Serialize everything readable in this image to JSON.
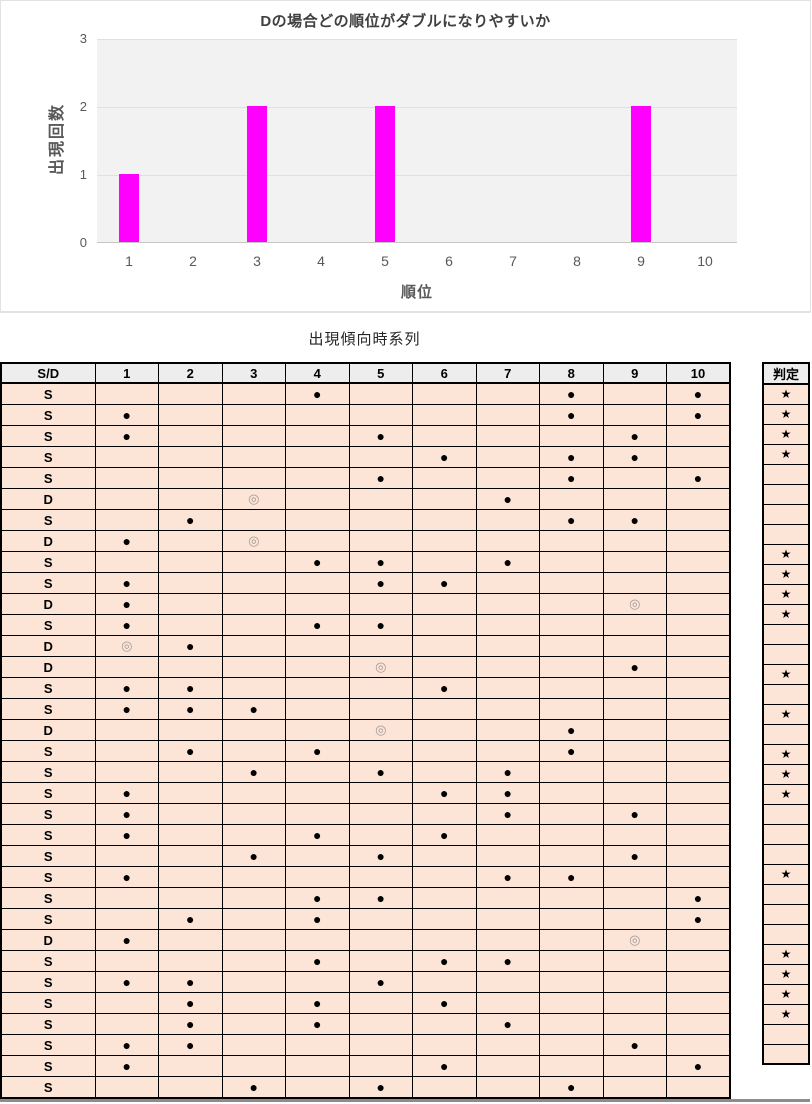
{
  "chart_data": {
    "type": "bar",
    "title": "Dの場合どの順位がダブルになりやすいか",
    "xlabel": "順位",
    "ylabel": "出現回数",
    "categories": [
      "1",
      "2",
      "3",
      "4",
      "5",
      "6",
      "7",
      "8",
      "9",
      "10"
    ],
    "values": [
      1,
      0,
      2,
      0,
      2,
      0,
      0,
      0,
      2,
      0
    ],
    "ylim": [
      0,
      3
    ],
    "yticks": [
      "0",
      "1",
      "2",
      "3"
    ],
    "bar_color": "#ff00ff",
    "plot_bg": "#f2f2f2",
    "grid": true,
    "legend": false
  },
  "table": {
    "title": "出現傾向時系列",
    "sd_header": "S/D",
    "rank_headers": [
      "1",
      "2",
      "3",
      "4",
      "5",
      "6",
      "7",
      "8",
      "9",
      "10"
    ],
    "judge_header": "判定",
    "symbols": {
      "single": "●",
      "double": "◎",
      "star": "★"
    },
    "rows": [
      {
        "sd": "S",
        "cells": [
          "",
          "",
          "",
          "●",
          "",
          "",
          "",
          "●",
          "",
          "●"
        ],
        "judge": "★"
      },
      {
        "sd": "S",
        "cells": [
          "●",
          "",
          "",
          "",
          "",
          "",
          "",
          "●",
          "",
          "●"
        ],
        "judge": "★"
      },
      {
        "sd": "S",
        "cells": [
          "●",
          "",
          "",
          "",
          "●",
          "",
          "",
          "",
          "●",
          ""
        ],
        "judge": "★"
      },
      {
        "sd": "S",
        "cells": [
          "",
          "",
          "",
          "",
          "",
          "●",
          "",
          "●",
          "●",
          ""
        ],
        "judge": "★"
      },
      {
        "sd": "S",
        "cells": [
          "",
          "",
          "",
          "",
          "●",
          "",
          "",
          "●",
          "",
          "●"
        ],
        "judge": ""
      },
      {
        "sd": "D",
        "cells": [
          "",
          "",
          "◎",
          "",
          "",
          "",
          "●",
          "",
          "",
          ""
        ],
        "judge": ""
      },
      {
        "sd": "S",
        "cells": [
          "",
          "●",
          "",
          "",
          "",
          "",
          "",
          "●",
          "●",
          ""
        ],
        "judge": ""
      },
      {
        "sd": "D",
        "cells": [
          "●",
          "",
          "◎",
          "",
          "",
          "",
          "",
          "",
          "",
          ""
        ],
        "judge": ""
      },
      {
        "sd": "S",
        "cells": [
          "",
          "",
          "",
          "●",
          "●",
          "",
          "●",
          "",
          "",
          ""
        ],
        "judge": "★"
      },
      {
        "sd": "S",
        "cells": [
          "●",
          "",
          "",
          "",
          "●",
          "●",
          "",
          "",
          "",
          ""
        ],
        "judge": "★"
      },
      {
        "sd": "D",
        "cells": [
          "●",
          "",
          "",
          "",
          "",
          "",
          "",
          "",
          "◎",
          ""
        ],
        "judge": "★"
      },
      {
        "sd": "S",
        "cells": [
          "●",
          "",
          "",
          "●",
          "●",
          "",
          "",
          "",
          "",
          ""
        ],
        "judge": "★"
      },
      {
        "sd": "D",
        "cells": [
          "◎",
          "●",
          "",
          "",
          "",
          "",
          "",
          "",
          "",
          ""
        ],
        "judge": ""
      },
      {
        "sd": "D",
        "cells": [
          "",
          "",
          "",
          "",
          "◎",
          "",
          "",
          "",
          "●",
          ""
        ],
        "judge": ""
      },
      {
        "sd": "S",
        "cells": [
          "●",
          "●",
          "",
          "",
          "",
          "●",
          "",
          "",
          "",
          ""
        ],
        "judge": "★"
      },
      {
        "sd": "S",
        "cells": [
          "●",
          "●",
          "●",
          "",
          "",
          "",
          "",
          "",
          "",
          ""
        ],
        "judge": ""
      },
      {
        "sd": "D",
        "cells": [
          "",
          "",
          "",
          "",
          "◎",
          "",
          "",
          "●",
          "",
          ""
        ],
        "judge": "★"
      },
      {
        "sd": "S",
        "cells": [
          "",
          "●",
          "",
          "●",
          "",
          "",
          "",
          "●",
          "",
          ""
        ],
        "judge": ""
      },
      {
        "sd": "S",
        "cells": [
          "",
          "",
          "●",
          "",
          "●",
          "",
          "●",
          "",
          "",
          ""
        ],
        "judge": "★"
      },
      {
        "sd": "S",
        "cells": [
          "●",
          "",
          "",
          "",
          "",
          "●",
          "●",
          "",
          "",
          ""
        ],
        "judge": "★"
      },
      {
        "sd": "S",
        "cells": [
          "●",
          "",
          "",
          "",
          "",
          "",
          "●",
          "",
          "●",
          ""
        ],
        "judge": "★"
      },
      {
        "sd": "S",
        "cells": [
          "●",
          "",
          "",
          "●",
          "",
          "●",
          "",
          "",
          "",
          ""
        ],
        "judge": ""
      },
      {
        "sd": "S",
        "cells": [
          "",
          "",
          "●",
          "",
          "●",
          "",
          "",
          "",
          "●",
          ""
        ],
        "judge": ""
      },
      {
        "sd": "S",
        "cells": [
          "●",
          "",
          "",
          "",
          "",
          "",
          "●",
          "●",
          "",
          ""
        ],
        "judge": ""
      },
      {
        "sd": "S",
        "cells": [
          "",
          "",
          "",
          "●",
          "●",
          "",
          "",
          "",
          "",
          "●"
        ],
        "judge": "★"
      },
      {
        "sd": "S",
        "cells": [
          "",
          "●",
          "",
          "●",
          "",
          "",
          "",
          "",
          "",
          "●"
        ],
        "judge": ""
      },
      {
        "sd": "D",
        "cells": [
          "●",
          "",
          "",
          "",
          "",
          "",
          "",
          "",
          "◎",
          ""
        ],
        "judge": ""
      },
      {
        "sd": "S",
        "cells": [
          "",
          "",
          "",
          "●",
          "",
          "●",
          "●",
          "",
          "",
          ""
        ],
        "judge": ""
      },
      {
        "sd": "S",
        "cells": [
          "●",
          "●",
          "",
          "",
          "●",
          "",
          "",
          "",
          "",
          ""
        ],
        "judge": "★"
      },
      {
        "sd": "S",
        "cells": [
          "",
          "●",
          "",
          "●",
          "",
          "●",
          "",
          "",
          "",
          ""
        ],
        "judge": "★"
      },
      {
        "sd": "S",
        "cells": [
          "",
          "●",
          "",
          "●",
          "",
          "",
          "●",
          "",
          "",
          ""
        ],
        "judge": "★"
      },
      {
        "sd": "S",
        "cells": [
          "●",
          "●",
          "",
          "",
          "",
          "",
          "",
          "",
          "●",
          ""
        ],
        "judge": "★"
      },
      {
        "sd": "S",
        "cells": [
          "●",
          "",
          "",
          "",
          "",
          "●",
          "",
          "",
          "",
          "●"
        ],
        "judge": ""
      },
      {
        "sd": "S",
        "cells": [
          "",
          "",
          "●",
          "",
          "●",
          "",
          "",
          "●",
          "",
          ""
        ],
        "judge": ""
      }
    ]
  },
  "colors": {
    "bar": "#ff00ff",
    "row_fill": "#fce4d6",
    "header_fill": "#ededed",
    "plot_fill": "#f2f2f2"
  }
}
